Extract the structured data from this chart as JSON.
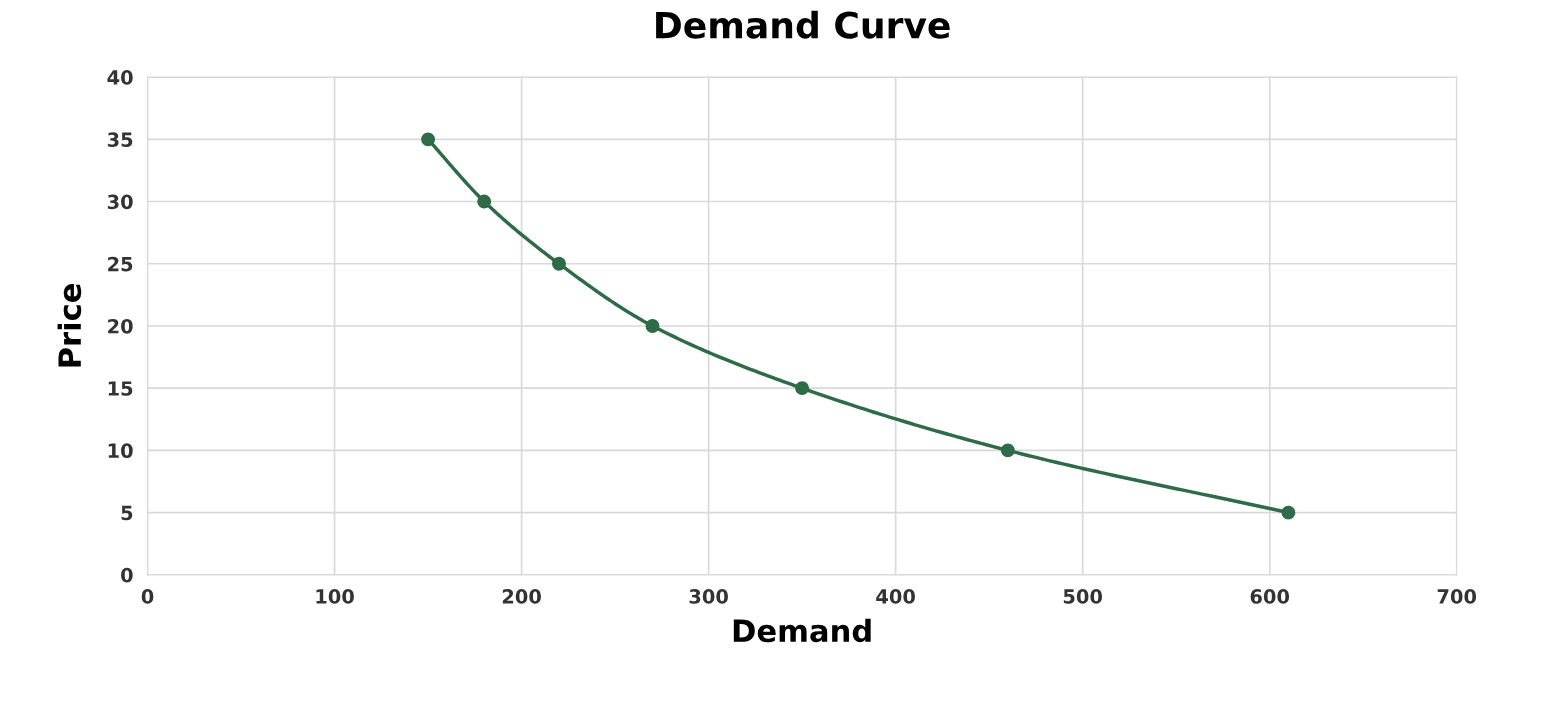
{
  "chart_data": {
    "type": "line",
    "title": "Demand Curve",
    "xlabel": "Demand",
    "ylabel": "Price",
    "x": [
      150,
      180,
      220,
      270,
      350,
      460,
      610
    ],
    "series": [
      {
        "color": "#2e6b47",
        "values": [
          35,
          30,
          25,
          20,
          15,
          10,
          5
        ]
      }
    ],
    "xlim": [
      0,
      700
    ],
    "xticks": [
      0,
      100,
      200,
      300,
      400,
      500,
      600,
      700
    ],
    "ylim": [
      0,
      40
    ],
    "yticks": [
      0,
      5,
      10,
      15,
      20,
      25,
      30,
      35,
      40
    ],
    "grid": true,
    "marker": "circle",
    "line_style": "solid",
    "legend": false
  }
}
